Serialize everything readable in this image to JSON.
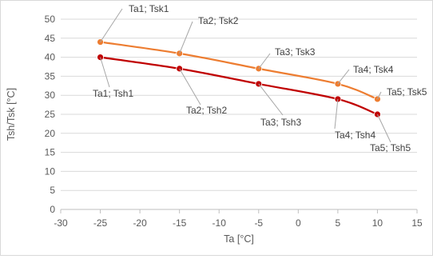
{
  "chart_data": {
    "type": "line",
    "title": "",
    "xlabel": "Ta [°C]",
    "ylabel": "Tsh/Tsk [°C]",
    "xlim": [
      -30,
      15
    ],
    "ylim": [
      0,
      50
    ],
    "x_ticks": [
      -30,
      -25,
      -20,
      -15,
      -10,
      -5,
      0,
      5,
      10,
      15
    ],
    "y_ticks": [
      0,
      5,
      10,
      15,
      20,
      25,
      30,
      35,
      40,
      45,
      50
    ],
    "grid": "horizontal",
    "legend": "none",
    "series": [
      {
        "color": "#ed7d31",
        "points": [
          {
            "x": -25,
            "y": 44,
            "label": "Ta1; Tsk1"
          },
          {
            "x": -15,
            "y": 41,
            "label": "Ta2; Tsk2"
          },
          {
            "x": -5,
            "y": 37,
            "label": "Ta3; Tsk3"
          },
          {
            "x": 5,
            "y": 33,
            "label": "Ta4; Tsk4"
          },
          {
            "x": 10,
            "y": 29,
            "label": "Ta5; Tsk5"
          }
        ]
      },
      {
        "color": "#c00000",
        "points": [
          {
            "x": -25,
            "y": 40,
            "label": "Ta1; Tsh1"
          },
          {
            "x": -15,
            "y": 37,
            "label": "Ta2; Tsh2"
          },
          {
            "x": -5,
            "y": 33,
            "label": "Ta3; Tsh3"
          },
          {
            "x": 5,
            "y": 29,
            "label": "Ta4; Tsh4"
          },
          {
            "x": 10,
            "y": 25,
            "label": "Ta5; Tsh5"
          }
        ]
      }
    ]
  }
}
